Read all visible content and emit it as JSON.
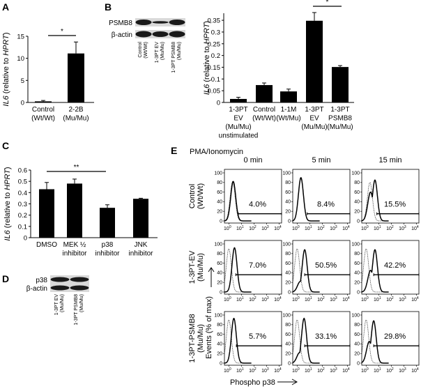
{
  "colors": {
    "bar": "#000000",
    "background": "#ffffff",
    "blot_band": "#1a1a1a"
  },
  "panels": {
    "A": {
      "letter": "A"
    },
    "B": {
      "letter": "B",
      "blot_rows": [
        "PSMB8",
        "β-actin"
      ],
      "blot_lanes": [
        [
          "Control",
          "(Wt/Wt)"
        ],
        [
          "1-3PT EV",
          "(Mu/Mu)"
        ],
        [
          "1-3PT PSMB8",
          "(Mu/Mu)"
        ]
      ]
    },
    "C": {
      "letter": "C"
    },
    "D": {
      "letter": "D",
      "blot_rows": [
        "p38",
        "β-actin"
      ],
      "blot_lanes": [
        [
          "1-3PT EV",
          "(Mu/Mu)"
        ],
        [
          "1-3PT PSMB8",
          "(Mu/Mu)"
        ]
      ]
    },
    "E": {
      "letter": "E"
    }
  },
  "chart_data": [
    {
      "id": "A",
      "type": "bar",
      "ylabel_italic": "IL6",
      "ylabel_mid": " (relative to ",
      "ylabel_italic2": "HPRT",
      "ylabel_end": ")",
      "categories": [
        [
          "Control",
          "(Wt/Wt)"
        ],
        [
          "2-2B",
          "(Mu/Mu)"
        ]
      ],
      "values": [
        0.25,
        11.1
      ],
      "errors": [
        0.2,
        2.6
      ],
      "ylim": [
        0,
        15
      ],
      "yticks": [
        "0",
        "5",
        "10",
        "15"
      ],
      "ytick_values": [
        0,
        5,
        10,
        15
      ],
      "significance": [
        {
          "from": 0,
          "to": 1,
          "label": "*"
        }
      ]
    },
    {
      "id": "B",
      "type": "bar",
      "ylabel_italic": "IL6",
      "ylabel_mid": " (relative to ",
      "ylabel_italic2": "HPRT",
      "ylabel_end": ")",
      "categories": [
        [
          "1-3PT",
          "EV",
          "(Mu/Mu)",
          "unstimulated"
        ],
        [
          "Control",
          "(Wt/Wt)"
        ],
        [
          "1-1M",
          "(Wt/Mu)"
        ],
        [
          "1-3PT",
          "EV",
          "(Mu/Mu)"
        ],
        [
          "1-3PT",
          "PSMB8",
          "(Mu/Mu)"
        ]
      ],
      "values": [
        0.015,
        0.074,
        0.047,
        0.348,
        0.151
      ],
      "errors": [
        0.007,
        0.009,
        0.01,
        0.035,
        0.006
      ],
      "ylim": [
        0,
        0.38
      ],
      "yticks": [
        "0",
        "0.05",
        "0.1",
        "0.15",
        "0.2",
        "0.25",
        "0.3",
        "0.35"
      ],
      "ytick_values": [
        0,
        0.05,
        0.1,
        0.15,
        0.2,
        0.25,
        0.3,
        0.35
      ],
      "significance": [
        {
          "from": 3,
          "to": 4,
          "label": "*"
        }
      ]
    },
    {
      "id": "C",
      "type": "bar",
      "ylabel_italic": "IL6",
      "ylabel_mid": " (relative to ",
      "ylabel_italic2": "HPRT",
      "ylabel_end": ")",
      "categories": [
        [
          "DMSO"
        ],
        [
          "MEK ½",
          "inhibitor"
        ],
        [
          "p38",
          "inhibitor"
        ],
        [
          "JNK",
          "inhibitor"
        ]
      ],
      "values": [
        0.43,
        0.48,
        0.265,
        0.345
      ],
      "errors": [
        0.06,
        0.04,
        0.027,
        0.005
      ],
      "ylim": [
        0,
        0.6
      ],
      "yticks": [
        "0",
        "0.1",
        "0.2",
        "0.3",
        "0.4",
        "0.5",
        "0.6"
      ],
      "ytick_values": [
        0,
        0.1,
        0.2,
        0.3,
        0.4,
        0.5,
        0.6
      ],
      "significance": [
        {
          "from": 0,
          "to": 2,
          "label": "**"
        }
      ]
    },
    {
      "id": "E",
      "type": "histogram-grid",
      "stimulus": "PMA/Ionomycin",
      "columns": [
        "0 min",
        "5 min",
        "15 min"
      ],
      "rows": [
        [
          "Control",
          "(Wt/Wt)"
        ],
        [
          "1-3PT-EV",
          "(Mu/Mu)"
        ],
        [
          "1-3PT-PSMB8",
          "(Mu/Mu)"
        ]
      ],
      "ylabel": "Events (% of max)",
      "xlabel": "Phospho p38",
      "yticks": [
        "0",
        "20",
        "40",
        "60",
        "80",
        "100"
      ],
      "ytick_values": [
        0,
        20,
        40,
        60,
        80,
        100
      ],
      "xticks_base": "10",
      "xticks_exp": [
        "0",
        "1",
        "2",
        "3",
        "4"
      ],
      "xscale": "log",
      "xlim_decades": [
        -0.35,
        4.2
      ],
      "ylim": [
        0,
        100
      ],
      "gate_start_decade": [
        [
          0.75,
          0.8,
          0.85
        ],
        [
          0.55,
          0.6,
          0.6
        ],
        [
          0.6,
          0.6,
          0.6
        ]
      ],
      "gate_level": [
        15,
        36,
        36
      ],
      "percentages": [
        [
          "4.0%",
          "8.4%",
          "15.5%"
        ],
        [
          "7.0%",
          "50.5%",
          "42.2%"
        ],
        [
          "5.7%",
          "33.1%",
          "29.8%"
        ]
      ],
      "control_peak": [
        [
          0.3,
          82
        ],
        [
          0.3,
          88
        ],
        [
          0.3,
          80
        ],
        [
          0.0,
          90
        ],
        [
          0.0,
          90
        ],
        [
          0.0,
          90
        ],
        [
          0.0,
          90
        ],
        [
          0.0,
          90
        ],
        [
          0.0,
          90
        ]
      ],
      "sample_peak": [
        [
          0.35,
          82
        ],
        [
          0.3,
          90
        ],
        [
          0.7,
          85
        ],
        [
          0.45,
          92
        ],
        [
          0.6,
          88
        ],
        [
          0.7,
          88
        ],
        [
          0.4,
          93
        ],
        [
          0.55,
          93
        ],
        [
          0.6,
          88
        ]
      ]
    }
  ]
}
